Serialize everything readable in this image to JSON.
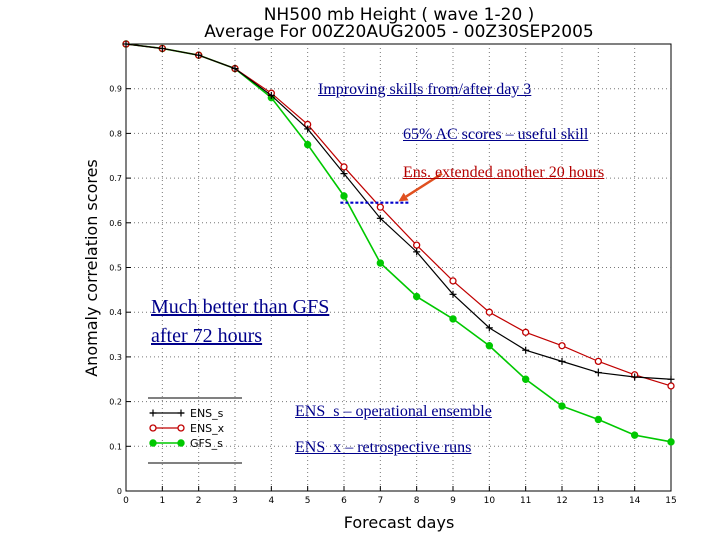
{
  "chart_data": {
    "type": "line",
    "title": "NH500 mb Height ( wave 1-20 )",
    "subtitle": "Average For 00Z20AUG2005 - 00Z30SEP2005",
    "xlabel": "Forecast days",
    "ylabel": "Anomaly correlation scores",
    "xlim": [
      0,
      15
    ],
    "ylim": [
      0,
      1
    ],
    "x_ticks": [
      "0",
      "1",
      "2",
      "3",
      "4",
      "5",
      "6",
      "7",
      "8",
      "9",
      "10",
      "11",
      "12",
      "13",
      "14",
      "15"
    ],
    "y_ticks": [
      "0",
      "0.1",
      "0.2",
      "0.3",
      "0.4",
      "0.5",
      "0.6",
      "0.7",
      "0.8",
      "0.9"
    ],
    "grid": true,
    "legend_position": "bottom-left",
    "series": [
      {
        "name": "ENS_s",
        "color": "#000000",
        "marker": "plus",
        "x": [
          0,
          1,
          2,
          3,
          4,
          5,
          6,
          7,
          8,
          9,
          10,
          11,
          12,
          13,
          14,
          15
        ],
        "y": [
          1.0,
          0.99,
          0.975,
          0.945,
          0.885,
          0.81,
          0.71,
          0.61,
          0.535,
          0.44,
          0.365,
          0.315,
          0.29,
          0.265,
          0.255,
          0.25
        ]
      },
      {
        "name": "ENS_x",
        "color": "#c00000",
        "marker": "circle",
        "x": [
          0,
          1,
          2,
          3,
          4,
          5,
          6,
          7,
          8,
          9,
          10,
          11,
          12,
          13,
          14,
          15
        ],
        "y": [
          1.0,
          0.99,
          0.975,
          0.945,
          0.89,
          0.82,
          0.725,
          0.635,
          0.55,
          0.47,
          0.4,
          0.355,
          0.325,
          0.29,
          0.26,
          0.235
        ]
      },
      {
        "name": "GFS_s",
        "color": "#00c800",
        "marker": "dot",
        "x": [
          0,
          1,
          2,
          3,
          4,
          5,
          6,
          7,
          8,
          9,
          10,
          11,
          12,
          13,
          14,
          15
        ],
        "y": [
          1.0,
          0.99,
          0.975,
          0.945,
          0.88,
          0.775,
          0.66,
          0.51,
          0.435,
          0.385,
          0.325,
          0.25,
          0.19,
          0.16,
          0.125,
          0.11
        ]
      }
    ],
    "reference_line": {
      "y": 0.645,
      "x_start": 5.9,
      "x_end": 7.8,
      "color": "#0000cc"
    },
    "annotations": {
      "improving": "Improving skills from/after day 3",
      "ac65": "65% AC scores – useful skill",
      "extended": "Ens. extended another 20 hours",
      "better_line1": "Much better than GFS",
      "better_line2": "after 72 hours",
      "ens_s_desc": "ENS_s – operational ensemble",
      "ens_x_desc": "ENS_x – retrospective runs"
    },
    "arrow": {
      "from_x": 8.7,
      "from_y": 0.71,
      "to_x": 7.5,
      "to_y": 0.648,
      "color": "#e05020"
    }
  }
}
